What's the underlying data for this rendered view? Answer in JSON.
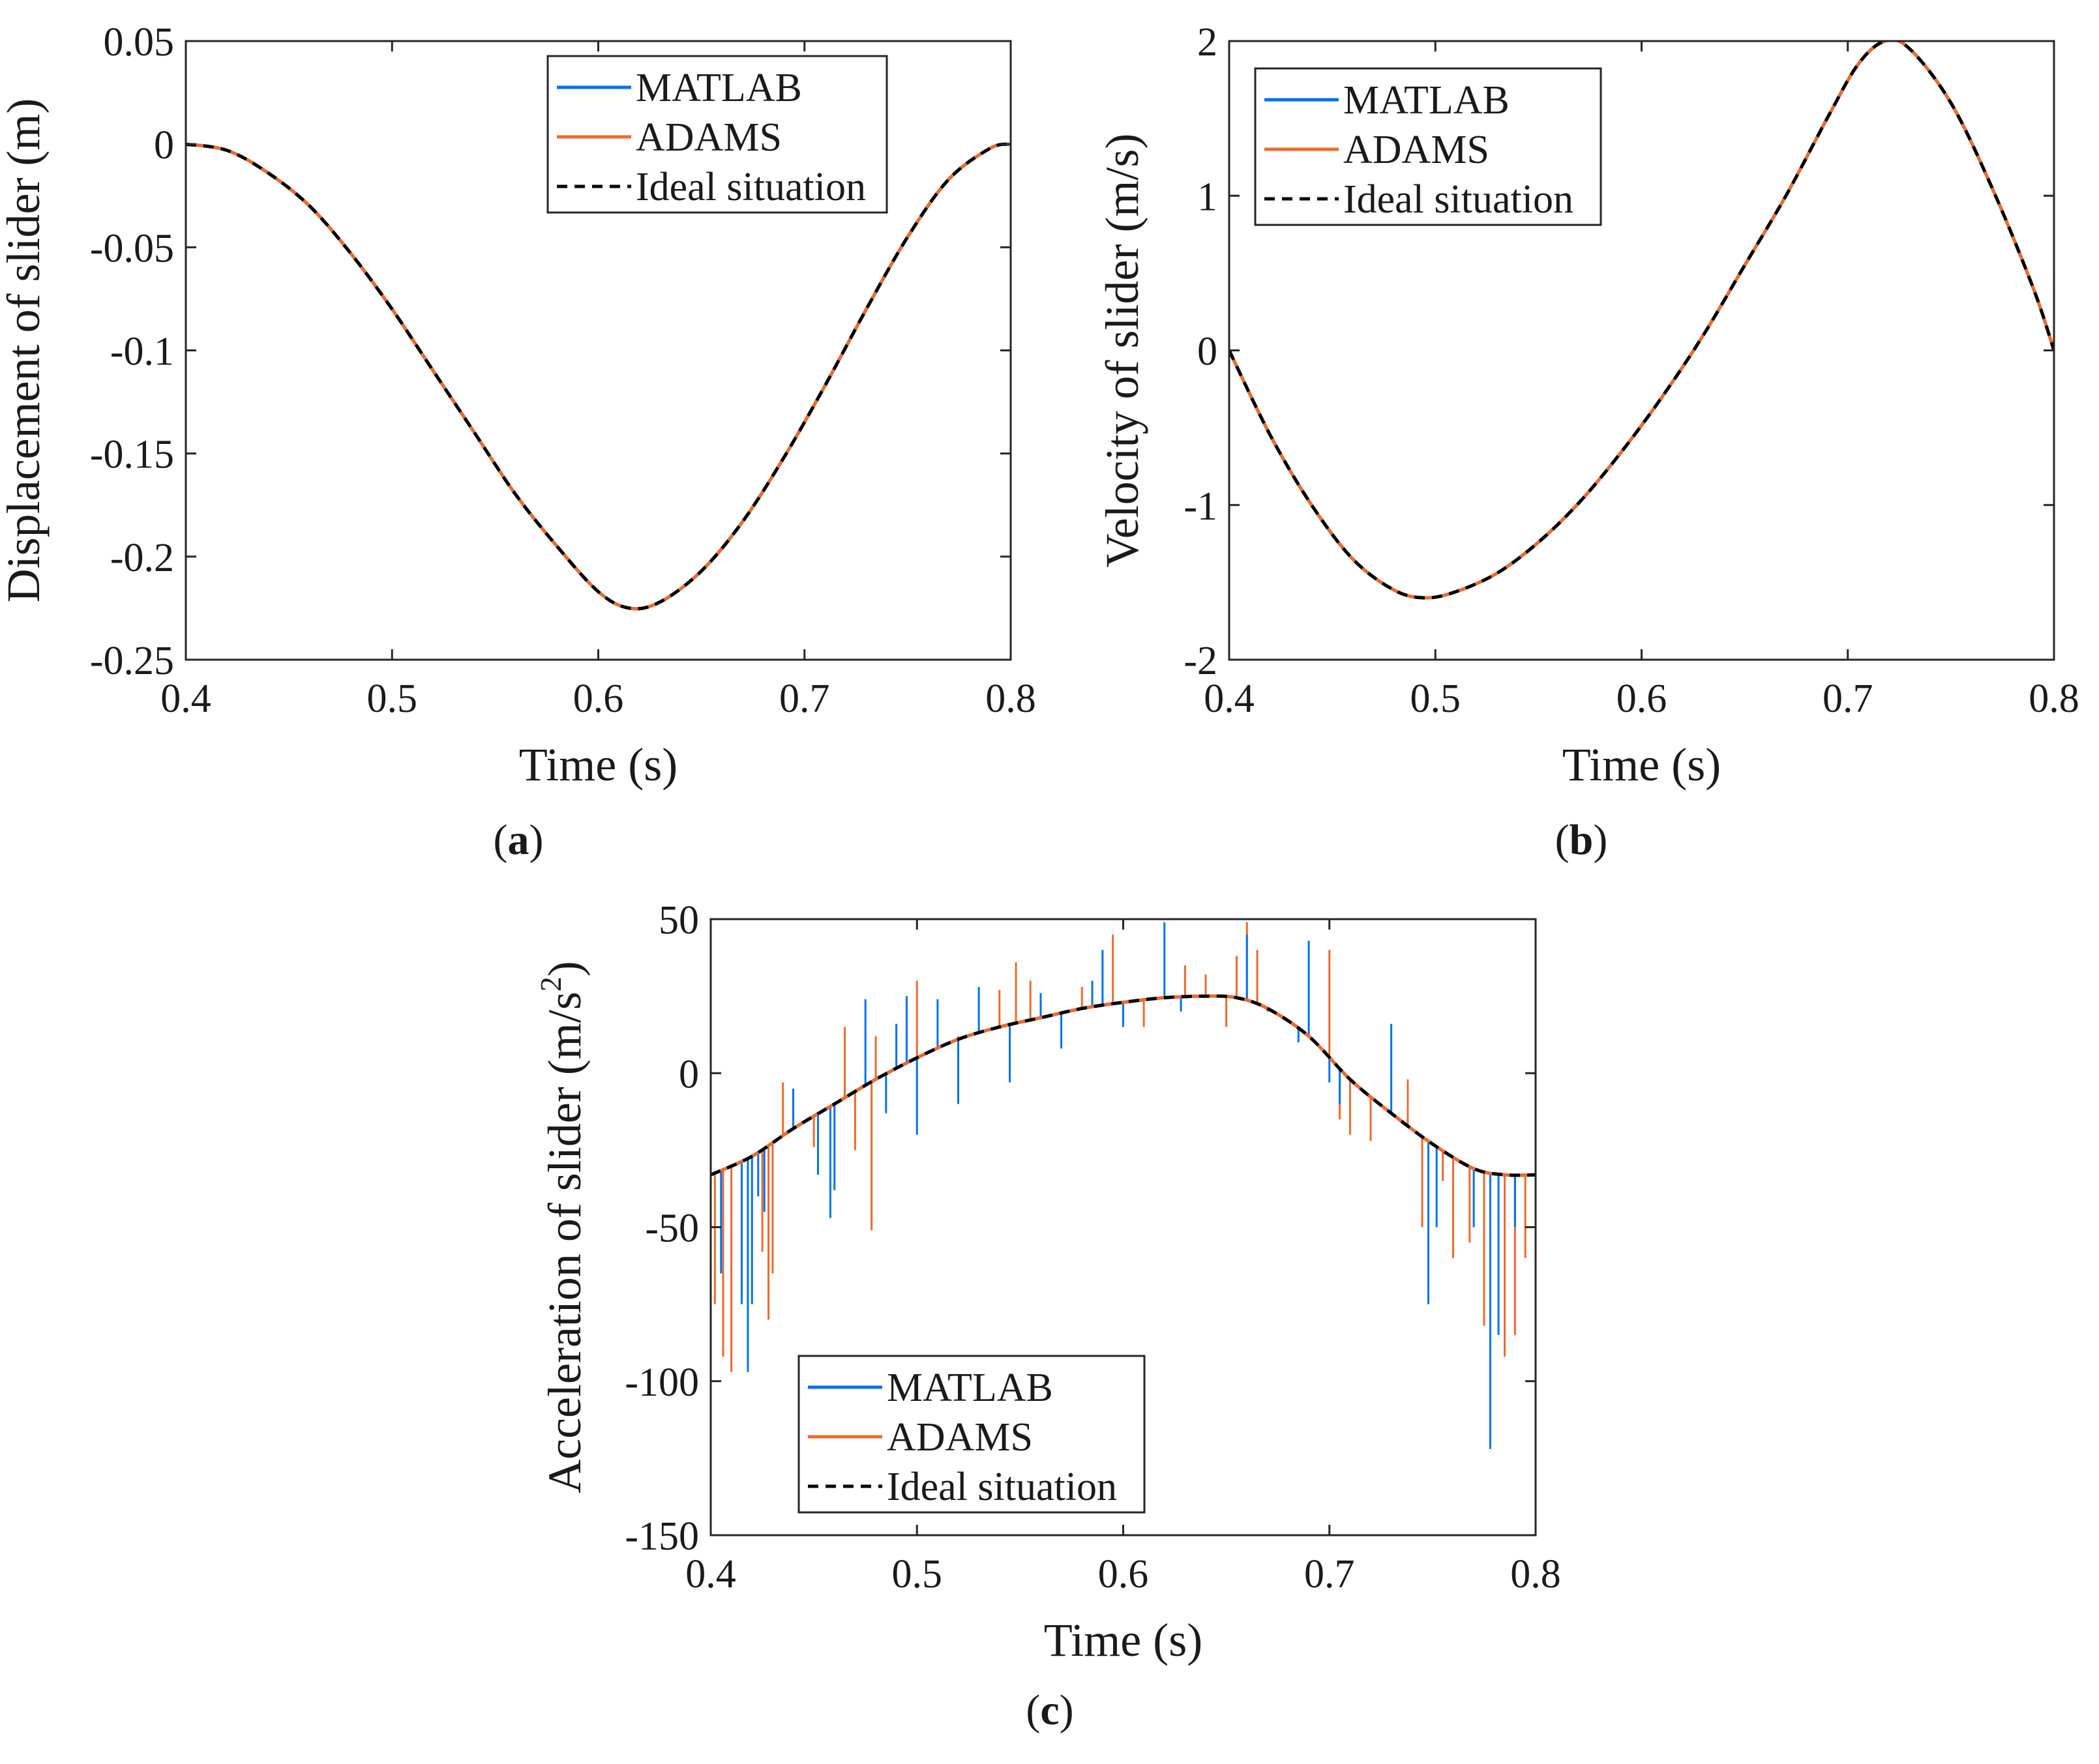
{
  "colors": {
    "matlab": "#0072ED",
    "adams": "#ED6A2E",
    "ideal": "#000000"
  },
  "chart_data": [
    {
      "id": "a",
      "type": "line",
      "panel_label": "a",
      "xlabel": "Time (s)",
      "ylabel": "Displacement of slider (m)",
      "xlim": [
        0.4,
        0.8
      ],
      "ylim": [
        -0.25,
        0.05
      ],
      "xticks": [
        0.4,
        0.5,
        0.6,
        0.7,
        0.8
      ],
      "xtick_labels": [
        "0.4",
        "0.5",
        "0.6",
        "0.7",
        "0.8"
      ],
      "yticks": [
        0.05,
        0,
        -0.05,
        -0.1,
        -0.15,
        -0.2,
        -0.25
      ],
      "ytick_labels": [
        "0.05",
        "0",
        "-0.05",
        "-0.1",
        "-0.15",
        "-0.2",
        "-0.25"
      ],
      "legend": {
        "location": "top-right",
        "entries": [
          "MATLAB",
          "ADAMS",
          "Ideal situation"
        ]
      },
      "grid": false,
      "series": [
        {
          "name": "MATLAB",
          "x": [
            0.4,
            0.42,
            0.44,
            0.46,
            0.48,
            0.5,
            0.52,
            0.54,
            0.56,
            0.58,
            0.6,
            0.615,
            0.63,
            0.65,
            0.67,
            0.69,
            0.71,
            0.73,
            0.75,
            0.77,
            0.79,
            0.8
          ],
          "y": [
            0,
            -0.003,
            -0.014,
            -0.03,
            -0.053,
            -0.08,
            -0.11,
            -0.14,
            -0.17,
            -0.195,
            -0.217,
            -0.225,
            -0.222,
            -0.207,
            -0.183,
            -0.152,
            -0.117,
            -0.08,
            -0.045,
            -0.017,
            -0.002,
            0
          ]
        },
        {
          "name": "ADAMS",
          "x": [
            0.4,
            0.42,
            0.44,
            0.46,
            0.48,
            0.5,
            0.52,
            0.54,
            0.56,
            0.58,
            0.6,
            0.615,
            0.63,
            0.65,
            0.67,
            0.69,
            0.71,
            0.73,
            0.75,
            0.77,
            0.79,
            0.8
          ],
          "y": [
            0,
            -0.003,
            -0.014,
            -0.03,
            -0.053,
            -0.08,
            -0.11,
            -0.14,
            -0.17,
            -0.195,
            -0.217,
            -0.225,
            -0.222,
            -0.207,
            -0.183,
            -0.152,
            -0.117,
            -0.08,
            -0.045,
            -0.017,
            -0.002,
            0
          ]
        },
        {
          "name": "Ideal situation",
          "x": [
            0.4,
            0.42,
            0.44,
            0.46,
            0.48,
            0.5,
            0.52,
            0.54,
            0.56,
            0.58,
            0.6,
            0.615,
            0.63,
            0.65,
            0.67,
            0.69,
            0.71,
            0.73,
            0.75,
            0.77,
            0.79,
            0.8
          ],
          "y": [
            0,
            -0.003,
            -0.014,
            -0.03,
            -0.053,
            -0.08,
            -0.11,
            -0.14,
            -0.17,
            -0.195,
            -0.217,
            -0.225,
            -0.222,
            -0.207,
            -0.183,
            -0.152,
            -0.117,
            -0.08,
            -0.045,
            -0.017,
            -0.002,
            0
          ]
        }
      ]
    },
    {
      "id": "b",
      "type": "line",
      "panel_label": "b",
      "xlabel": "Time (s)",
      "ylabel": "Velocity of slider (m/s)",
      "xlim": [
        0.4,
        0.8
      ],
      "ylim": [
        -2,
        2
      ],
      "xticks": [
        0.4,
        0.5,
        0.6,
        0.7,
        0.8
      ],
      "xtick_labels": [
        "0.4",
        "0.5",
        "0.6",
        "0.7",
        "0.8"
      ],
      "yticks": [
        2,
        1,
        0,
        -1,
        -2
      ],
      "ytick_labels": [
        "2",
        "1",
        "0",
        "-1",
        "-2"
      ],
      "legend": {
        "location": "top-left",
        "entries": [
          "MATLAB",
          "ADAMS",
          "Ideal situation"
        ]
      },
      "grid": false,
      "series": [
        {
          "name": "MATLAB",
          "x": [
            0.4,
            0.42,
            0.44,
            0.46,
            0.48,
            0.495,
            0.51,
            0.53,
            0.55,
            0.57,
            0.59,
            0.61,
            0.63,
            0.65,
            0.67,
            0.69,
            0.705,
            0.718,
            0.73,
            0.75,
            0.77,
            0.79,
            0.8
          ],
          "y": [
            0,
            -0.55,
            -1.0,
            -1.35,
            -1.55,
            -1.6,
            -1.56,
            -1.44,
            -1.24,
            -0.98,
            -0.66,
            -0.3,
            0.1,
            0.55,
            1.0,
            1.5,
            1.85,
            2.0,
            1.95,
            1.6,
            1.05,
            0.4,
            0
          ]
        },
        {
          "name": "ADAMS",
          "x": [
            0.4,
            0.42,
            0.44,
            0.46,
            0.48,
            0.495,
            0.51,
            0.53,
            0.55,
            0.57,
            0.59,
            0.61,
            0.63,
            0.65,
            0.67,
            0.69,
            0.705,
            0.718,
            0.73,
            0.75,
            0.77,
            0.79,
            0.8
          ],
          "y": [
            0,
            -0.55,
            -1.0,
            -1.35,
            -1.55,
            -1.6,
            -1.56,
            -1.44,
            -1.24,
            -0.98,
            -0.66,
            -0.3,
            0.1,
            0.55,
            1.0,
            1.5,
            1.85,
            2.0,
            1.95,
            1.6,
            1.05,
            0.4,
            0
          ]
        },
        {
          "name": "Ideal situation",
          "x": [
            0.4,
            0.42,
            0.44,
            0.46,
            0.48,
            0.495,
            0.51,
            0.53,
            0.55,
            0.57,
            0.59,
            0.61,
            0.63,
            0.65,
            0.67,
            0.69,
            0.705,
            0.718,
            0.73,
            0.75,
            0.77,
            0.79,
            0.8
          ],
          "y": [
            0,
            -0.55,
            -1.0,
            -1.35,
            -1.55,
            -1.6,
            -1.56,
            -1.44,
            -1.24,
            -0.98,
            -0.66,
            -0.3,
            0.1,
            0.55,
            1.0,
            1.5,
            1.85,
            2.0,
            1.95,
            1.6,
            1.05,
            0.4,
            0
          ]
        }
      ]
    },
    {
      "id": "c",
      "type": "line",
      "panel_label": "c",
      "xlabel": "Time (s)",
      "ylabel": "Acceleration of slider (m/s",
      "ylabel_superscript": "2",
      "ylabel_suffix": ")",
      "xlim": [
        0.4,
        0.8
      ],
      "ylim": [
        -150,
        50
      ],
      "xticks": [
        0.4,
        0.5,
        0.6,
        0.7,
        0.8
      ],
      "xtick_labels": [
        "0.4",
        "0.5",
        "0.6",
        "0.7",
        "0.8"
      ],
      "yticks": [
        50,
        0,
        -50,
        -100,
        -150
      ],
      "ytick_labels": [
        "50",
        "0",
        "-50",
        "-100",
        "-150"
      ],
      "legend": {
        "location": "bottom-left",
        "entries": [
          "MATLAB",
          "ADAMS",
          "Ideal situation"
        ]
      },
      "grid": false,
      "series": [
        {
          "name": "Ideal situation",
          "x": [
            0.4,
            0.42,
            0.44,
            0.46,
            0.48,
            0.5,
            0.52,
            0.54,
            0.56,
            0.58,
            0.6,
            0.62,
            0.64,
            0.655,
            0.67,
            0.69,
            0.71,
            0.73,
            0.75,
            0.77,
            0.785,
            0.8
          ],
          "y": [
            -33,
            -27,
            -18,
            -10,
            -2,
            5,
            11,
            15,
            18,
            21,
            23,
            24.5,
            25,
            24.5,
            21,
            12,
            -2,
            -13,
            -23,
            -31,
            -33,
            -33
          ]
        },
        {
          "name": "MATLAB",
          "base_curve": "Ideal situation",
          "spikes": [
            {
              "x": 0.405,
              "y": -65
            },
            {
              "x": 0.415,
              "y": -75
            },
            {
              "x": 0.418,
              "y": -97
            },
            {
              "x": 0.42,
              "y": -75
            },
            {
              "x": 0.423,
              "y": -40
            },
            {
              "x": 0.426,
              "y": -45
            },
            {
              "x": 0.44,
              "y": -5
            },
            {
              "x": 0.452,
              "y": -33
            },
            {
              "x": 0.458,
              "y": -47
            },
            {
              "x": 0.46,
              "y": -38
            },
            {
              "x": 0.475,
              "y": 24
            },
            {
              "x": 0.485,
              "y": -13
            },
            {
              "x": 0.49,
              "y": 16
            },
            {
              "x": 0.495,
              "y": 25
            },
            {
              "x": 0.5,
              "y": -20
            },
            {
              "x": 0.51,
              "y": 24
            },
            {
              "x": 0.52,
              "y": -10
            },
            {
              "x": 0.53,
              "y": 28
            },
            {
              "x": 0.545,
              "y": -3
            },
            {
              "x": 0.56,
              "y": 26
            },
            {
              "x": 0.57,
              "y": 8
            },
            {
              "x": 0.585,
              "y": 30
            },
            {
              "x": 0.59,
              "y": 40
            },
            {
              "x": 0.6,
              "y": 15
            },
            {
              "x": 0.62,
              "y": 49
            },
            {
              "x": 0.628,
              "y": 20
            },
            {
              "x": 0.66,
              "y": 45
            },
            {
              "x": 0.685,
              "y": 10
            },
            {
              "x": 0.69,
              "y": 43
            },
            {
              "x": 0.7,
              "y": -3
            },
            {
              "x": 0.705,
              "y": -10
            },
            {
              "x": 0.73,
              "y": 16
            },
            {
              "x": 0.748,
              "y": -75
            },
            {
              "x": 0.752,
              "y": -50
            },
            {
              "x": 0.77,
              "y": -50
            },
            {
              "x": 0.778,
              "y": -122
            },
            {
              "x": 0.782,
              "y": -85
            },
            {
              "x": 0.79,
              "y": -50
            }
          ]
        },
        {
          "name": "ADAMS",
          "base_curve": "Ideal situation",
          "spikes": [
            {
              "x": 0.402,
              "y": -75
            },
            {
              "x": 0.406,
              "y": -92
            },
            {
              "x": 0.41,
              "y": -97
            },
            {
              "x": 0.425,
              "y": -58
            },
            {
              "x": 0.428,
              "y": -80
            },
            {
              "x": 0.43,
              "y": -65
            },
            {
              "x": 0.435,
              "y": -3
            },
            {
              "x": 0.45,
              "y": -24
            },
            {
              "x": 0.465,
              "y": 15
            },
            {
              "x": 0.47,
              "y": -25
            },
            {
              "x": 0.478,
              "y": -51
            },
            {
              "x": 0.48,
              "y": 12
            },
            {
              "x": 0.5,
              "y": 30
            },
            {
              "x": 0.52,
              "y": 12
            },
            {
              "x": 0.54,
              "y": 27
            },
            {
              "x": 0.548,
              "y": 36
            },
            {
              "x": 0.555,
              "y": 30
            },
            {
              "x": 0.562,
              "y": 18
            },
            {
              "x": 0.58,
              "y": 28
            },
            {
              "x": 0.595,
              "y": 45
            },
            {
              "x": 0.61,
              "y": 15
            },
            {
              "x": 0.63,
              "y": 35
            },
            {
              "x": 0.64,
              "y": 32
            },
            {
              "x": 0.65,
              "y": 15
            },
            {
              "x": 0.655,
              "y": 38
            },
            {
              "x": 0.66,
              "y": 49
            },
            {
              "x": 0.665,
              "y": 40
            },
            {
              "x": 0.67,
              "y": 20
            },
            {
              "x": 0.7,
              "y": 40
            },
            {
              "x": 0.705,
              "y": -15
            },
            {
              "x": 0.71,
              "y": -20
            },
            {
              "x": 0.72,
              "y": -22
            },
            {
              "x": 0.738,
              "y": -2
            },
            {
              "x": 0.745,
              "y": -50
            },
            {
              "x": 0.755,
              "y": -35
            },
            {
              "x": 0.76,
              "y": -60
            },
            {
              "x": 0.768,
              "y": -55
            },
            {
              "x": 0.775,
              "y": -82
            },
            {
              "x": 0.785,
              "y": -92
            },
            {
              "x": 0.79,
              "y": -85
            },
            {
              "x": 0.795,
              "y": -60
            },
            {
              "x": 0.8,
              "y": -85
            }
          ]
        }
      ]
    }
  ]
}
